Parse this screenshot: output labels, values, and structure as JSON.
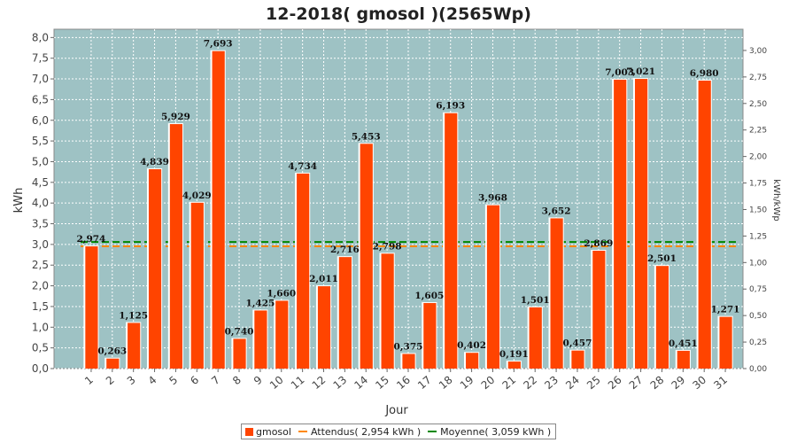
{
  "colors": {
    "plot_bg": "#9ec2c4",
    "bar": "#ff4400",
    "attendus": "#ff8800",
    "moyenne": "#008800",
    "grid": "#ffffff"
  },
  "chart_data": {
    "type": "bar",
    "title": "12-2018( gmosol )(2565Wp)",
    "xlabel": "Jour",
    "ylabel": "kWh",
    "ylabel_right": "kWh/kWp",
    "ylim": [
      0,
      8.2
    ],
    "ylim_right": [
      0,
      3.2
    ],
    "yticks": [
      "0,0",
      "0,5",
      "1,0",
      "1,5",
      "2,0",
      "2,5",
      "3,0",
      "3,5",
      "4,0",
      "4,5",
      "5,0",
      "5,5",
      "6,0",
      "6,5",
      "7,0",
      "7,5",
      "8,0"
    ],
    "yticks_right": [
      "0,00",
      "0,25",
      "0,50",
      "0,75",
      "1,00",
      "1,25",
      "1,50",
      "1,75",
      "2,00",
      "2,25",
      "2,50",
      "2,75",
      "3,00"
    ],
    "categories": [
      "1",
      "2",
      "3",
      "4",
      "5",
      "6",
      "7",
      "8",
      "9",
      "10",
      "11",
      "12",
      "13",
      "14",
      "15",
      "16",
      "17",
      "18",
      "19",
      "20",
      "21",
      "22",
      "23",
      "24",
      "25",
      "26",
      "27",
      "28",
      "29",
      "30",
      "31"
    ],
    "series": [
      {
        "name": "gmosol",
        "values": [
          2.974,
          0.263,
          1.125,
          4.839,
          5.929,
          4.029,
          7.693,
          0.74,
          1.425,
          1.66,
          4.734,
          2.011,
          2.716,
          5.453,
          2.798,
          0.375,
          1.605,
          6.193,
          0.402,
          3.968,
          0.191,
          1.501,
          3.652,
          0.457,
          2.869,
          7.003,
          7.021,
          2.501,
          0.451,
          6.98,
          1.271
        ],
        "labels": [
          "2,974",
          "0,263",
          "1,125",
          "4,839",
          "5,929",
          "4,029",
          "7,693",
          "0,740",
          "1,425",
          "1,660",
          "4,734",
          "2,011",
          "2,716",
          "5,453",
          "2,798",
          "0,375",
          "1,605",
          "6,193",
          "0,402",
          "3,968",
          "0,191",
          "1,501",
          "3,652",
          "0,457",
          "2,869",
          "7,003",
          "7,021",
          "2,501",
          "0,451",
          "6,980",
          "1,271"
        ]
      }
    ],
    "reference_lines": [
      {
        "name": "Attendus",
        "value": 2.954
      },
      {
        "name": "Moyenne",
        "value": 3.059
      }
    ],
    "legend": {
      "position": "bottom",
      "items": [
        "gmosol",
        "Attendus( 2,954 kWh )",
        "Moyenne( 3,059 kWh )"
      ]
    },
    "grid": true
  }
}
